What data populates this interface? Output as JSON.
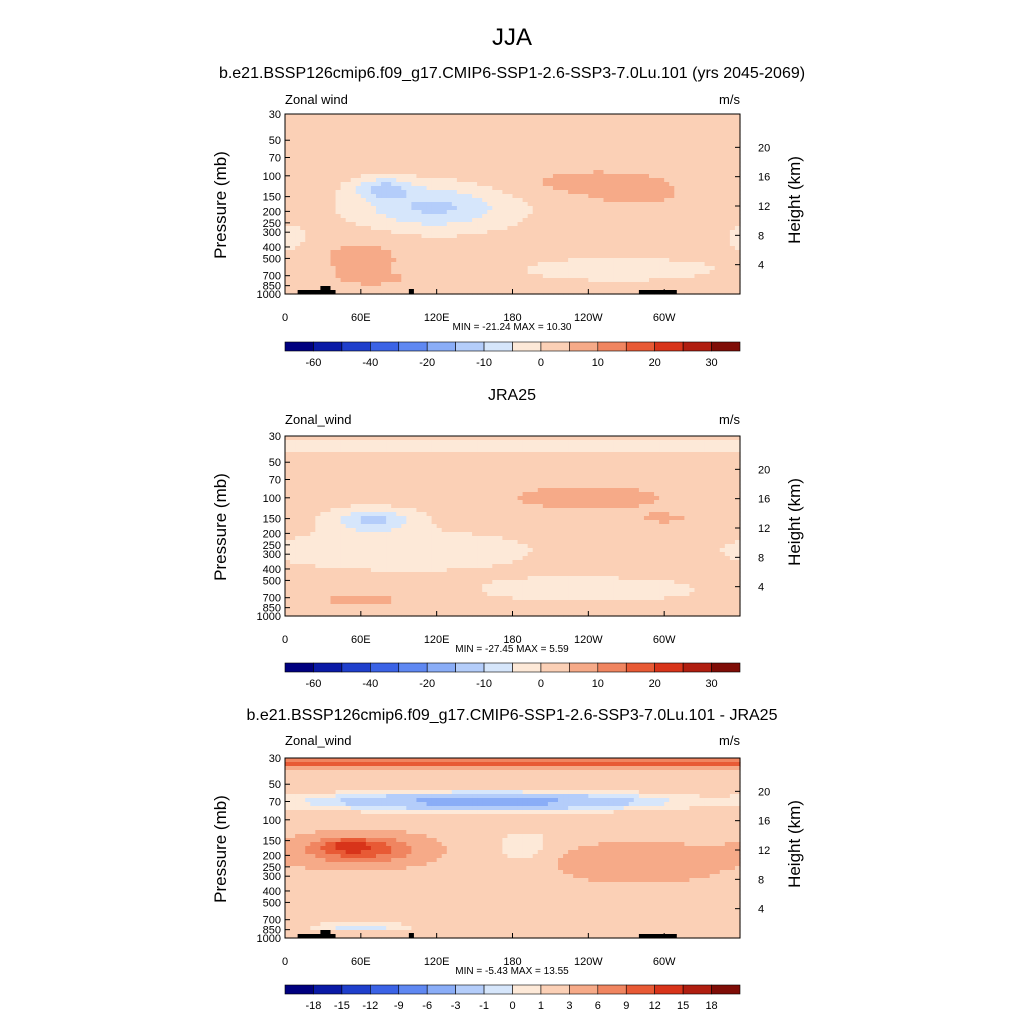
{
  "figure": {
    "title": "JJA",
    "colors": {
      "wind": [
        "#00007f",
        "#0a1aa6",
        "#1f3fcc",
        "#3b63e6",
        "#5f88f2",
        "#8aadf7",
        "#b4cdfa",
        "#d6e6fb",
        "#fde9d8",
        "#fbd0b6",
        "#f6aa88",
        "#f08560",
        "#e85a35",
        "#d8341a",
        "#b01e10",
        "#7f0d07"
      ],
      "diff": [
        "#00007f",
        "#0a1aa6",
        "#1f3fcc",
        "#3b63e6",
        "#5f88f2",
        "#8aadf7",
        "#b4cdfa",
        "#d6e6fb",
        "#fde9d8",
        "#fbd0b6",
        "#f6aa88",
        "#f08560",
        "#e85a35",
        "#d8341a",
        "#b01e10",
        "#7f0d07"
      ]
    }
  },
  "chart_data": [
    {
      "type": "heatmap",
      "title": "b.e21.BSSP126cmip6.f09_g17.CMIP6-SSP1-2.6-SSP3-7.0Lu.101 (yrs 2045-2069)",
      "left_label": "Zonal wind",
      "right_label": "m/s",
      "ylabel": "Pressure (mb)",
      "ylabel_right": "Height (km)",
      "x_ticks": [
        "0",
        "60E",
        "120E",
        "180",
        "120W",
        "60W"
      ],
      "x_tick_values": [
        0,
        60,
        120,
        180,
        240,
        300
      ],
      "xlim": [
        0,
        360
      ],
      "y_ticks": [
        "30",
        "50",
        "70",
        "100",
        "150",
        "200",
        "250",
        "300",
        "400",
        "500",
        "700",
        "850",
        "1000"
      ],
      "y_tick_values": [
        30,
        50,
        70,
        100,
        150,
        200,
        250,
        300,
        400,
        500,
        700,
        850,
        1000
      ],
      "ylim": [
        30,
        1000
      ],
      "y_scale": "log",
      "height_ticks": [
        "20",
        "16",
        "12",
        "8",
        "4"
      ],
      "height_values": [
        20,
        16,
        12,
        8,
        4
      ],
      "stats": "MIN = -21.24  MAX =  10.30",
      "colorbar_labels": [
        "-60",
        "-40",
        "-20",
        "-10",
        "0",
        "10",
        "20",
        "30"
      ],
      "colorbar_boundaries": [
        -70,
        -60,
        -50,
        -40,
        -30,
        -20,
        -15,
        -10,
        -5,
        0,
        5,
        10,
        15,
        20,
        25,
        30,
        35
      ],
      "palette": "wind",
      "background_value": 2,
      "blobs": [
        {
          "lon": 118,
          "p": 185,
          "rlon": 58,
          "rlev": 0.42,
          "amp": -13
        },
        {
          "lon": 78,
          "p": 128,
          "rlon": 22,
          "rlev": 0.2,
          "amp": -12
        },
        {
          "lon": 4,
          "p": 330,
          "rlon": 14,
          "rlev": 0.25,
          "amp": -5
        },
        {
          "lon": 265,
          "p": 620,
          "rlon": 90,
          "rlev": 0.26,
          "amp": -4
        },
        {
          "lon": 248,
          "p": 115,
          "rlon": 70,
          "rlev": 0.3,
          "amp": 5
        },
        {
          "lon": 278,
          "p": 145,
          "rlon": 28,
          "rlev": 0.18,
          "amp": 5
        },
        {
          "lon": 60,
          "p": 520,
          "rlon": 32,
          "rlev": 0.4,
          "amp": 6
        },
        {
          "lon": 70,
          "p": 740,
          "rlon": 22,
          "rlev": 0.1,
          "amp": 6
        },
        {
          "lon": 255,
          "p": 300,
          "rlon": 12,
          "rlev": 0.1,
          "amp": 3
        }
      ],
      "terrain": [
        [
          10,
          30,
          4
        ],
        [
          28,
          36,
          8
        ],
        [
          36,
          40,
          4
        ],
        [
          98,
          102,
          5
        ],
        [
          280,
          310,
          4
        ]
      ]
    },
    {
      "type": "heatmap",
      "title": "JRA25",
      "left_label": "Zonal_wind",
      "right_label": "m/s",
      "ylabel": "Pressure (mb)",
      "ylabel_right": "Height (km)",
      "x_ticks": [
        "0",
        "60E",
        "120E",
        "180",
        "120W",
        "60W"
      ],
      "x_tick_values": [
        0,
        60,
        120,
        180,
        240,
        300
      ],
      "xlim": [
        0,
        360
      ],
      "y_ticks": [
        "30",
        "50",
        "70",
        "100",
        "150",
        "200",
        "250",
        "300",
        "400",
        "500",
        "700",
        "850",
        "1000"
      ],
      "y_tick_values": [
        30,
        50,
        70,
        100,
        150,
        200,
        250,
        300,
        400,
        500,
        700,
        850,
        1000
      ],
      "ylim": [
        30,
        1000
      ],
      "y_scale": "log",
      "height_ticks": [
        "20",
        "16",
        "12",
        "8",
        "4"
      ],
      "height_values": [
        20,
        16,
        12,
        8,
        4
      ],
      "stats": "MIN = -27.45  MAX =   5.59",
      "colorbar_labels": [
        "-60",
        "-40",
        "-20",
        "-10",
        "0",
        "10",
        "20",
        "30"
      ],
      "colorbar_boundaries": [
        -70,
        -60,
        -50,
        -40,
        -30,
        -20,
        -15,
        -10,
        -5,
        0,
        5,
        10,
        15,
        20,
        25,
        30,
        35
      ],
      "palette": "wind",
      "background_value": 2,
      "blobs": [
        {
          "lon": 180,
          "p": 36,
          "rlon": 400,
          "rlev": 0.1,
          "amp": -6
        },
        {
          "lon": 90,
          "p": 280,
          "rlon": 110,
          "rlev": 0.4,
          "amp": -5
        },
        {
          "lon": 70,
          "p": 155,
          "rlon": 32,
          "rlev": 0.22,
          "amp": -13
        },
        {
          "lon": 240,
          "p": 600,
          "rlon": 100,
          "rlev": 0.28,
          "amp": -4
        },
        {
          "lon": 240,
          "p": 100,
          "rlon": 80,
          "rlev": 0.3,
          "amp": 5
        },
        {
          "lon": 300,
          "p": 150,
          "rlon": 25,
          "rlev": 0.12,
          "amp": 4
        },
        {
          "lon": 60,
          "p": 720,
          "rlon": 40,
          "rlev": 0.15,
          "amp": 5
        }
      ],
      "terrain": []
    },
    {
      "type": "heatmap",
      "title": "b.e21.BSSP126cmip6.f09_g17.CMIP6-SSP1-2.6-SSP3-7.0Lu.101 - JRA25",
      "left_label": "Zonal_wind",
      "right_label": "m/s",
      "ylabel": "Pressure (mb)",
      "ylabel_right": "Height (km)",
      "x_ticks": [
        "0",
        "60E",
        "120E",
        "180",
        "120W",
        "60W"
      ],
      "x_tick_values": [
        0,
        60,
        120,
        180,
        240,
        300
      ],
      "xlim": [
        0,
        360
      ],
      "y_ticks": [
        "30",
        "50",
        "70",
        "100",
        "150",
        "200",
        "250",
        "300",
        "400",
        "500",
        "700",
        "850",
        "1000"
      ],
      "y_tick_values": [
        30,
        50,
        70,
        100,
        150,
        200,
        250,
        300,
        400,
        500,
        700,
        850,
        1000
      ],
      "ylim": [
        30,
        1000
      ],
      "y_scale": "log",
      "height_ticks": [
        "20",
        "16",
        "12",
        "8",
        "4"
      ],
      "height_values": [
        20,
        16,
        12,
        8,
        4
      ],
      "stats": "MIN =  -5.43  MAX =  13.55",
      "colorbar_labels": [
        "-18",
        "-15",
        "-12",
        "-9",
        "-6",
        "-3",
        "-1",
        "0",
        "1",
        "3",
        "6",
        "9",
        "12",
        "15",
        "18"
      ],
      "colorbar_boundaries": [
        -21,
        -18,
        -15,
        -12,
        -9,
        -6,
        -3,
        -1,
        0,
        1,
        3,
        6,
        9,
        12,
        15,
        18,
        21
      ],
      "palette": "diff",
      "background_value": 2,
      "blobs": [
        {
          "lon": 180,
          "p": 33,
          "rlon": 400,
          "rlev": 0.07,
          "amp": 10
        },
        {
          "lon": 160,
          "p": 70,
          "rlon": 140,
          "rlev": 0.18,
          "amp": -6
        },
        {
          "lon": 60,
          "p": 180,
          "rlon": 45,
          "rlev": 0.28,
          "amp": 9
        },
        {
          "lon": 50,
          "p": 165,
          "rlon": 20,
          "rlev": 0.12,
          "amp": 5
        },
        {
          "lon": 280,
          "p": 230,
          "rlon": 60,
          "rlev": 0.35,
          "amp": 4
        },
        {
          "lon": 190,
          "p": 170,
          "rlon": 25,
          "rlev": 0.35,
          "amp": -2
        },
        {
          "lon": 60,
          "p": 800,
          "rlon": 40,
          "rlev": 0.07,
          "amp": -3
        }
      ],
      "terrain": [
        [
          10,
          30,
          4
        ],
        [
          28,
          36,
          8
        ],
        [
          36,
          40,
          4
        ],
        [
          98,
          102,
          5
        ],
        [
          280,
          310,
          4
        ]
      ]
    }
  ]
}
